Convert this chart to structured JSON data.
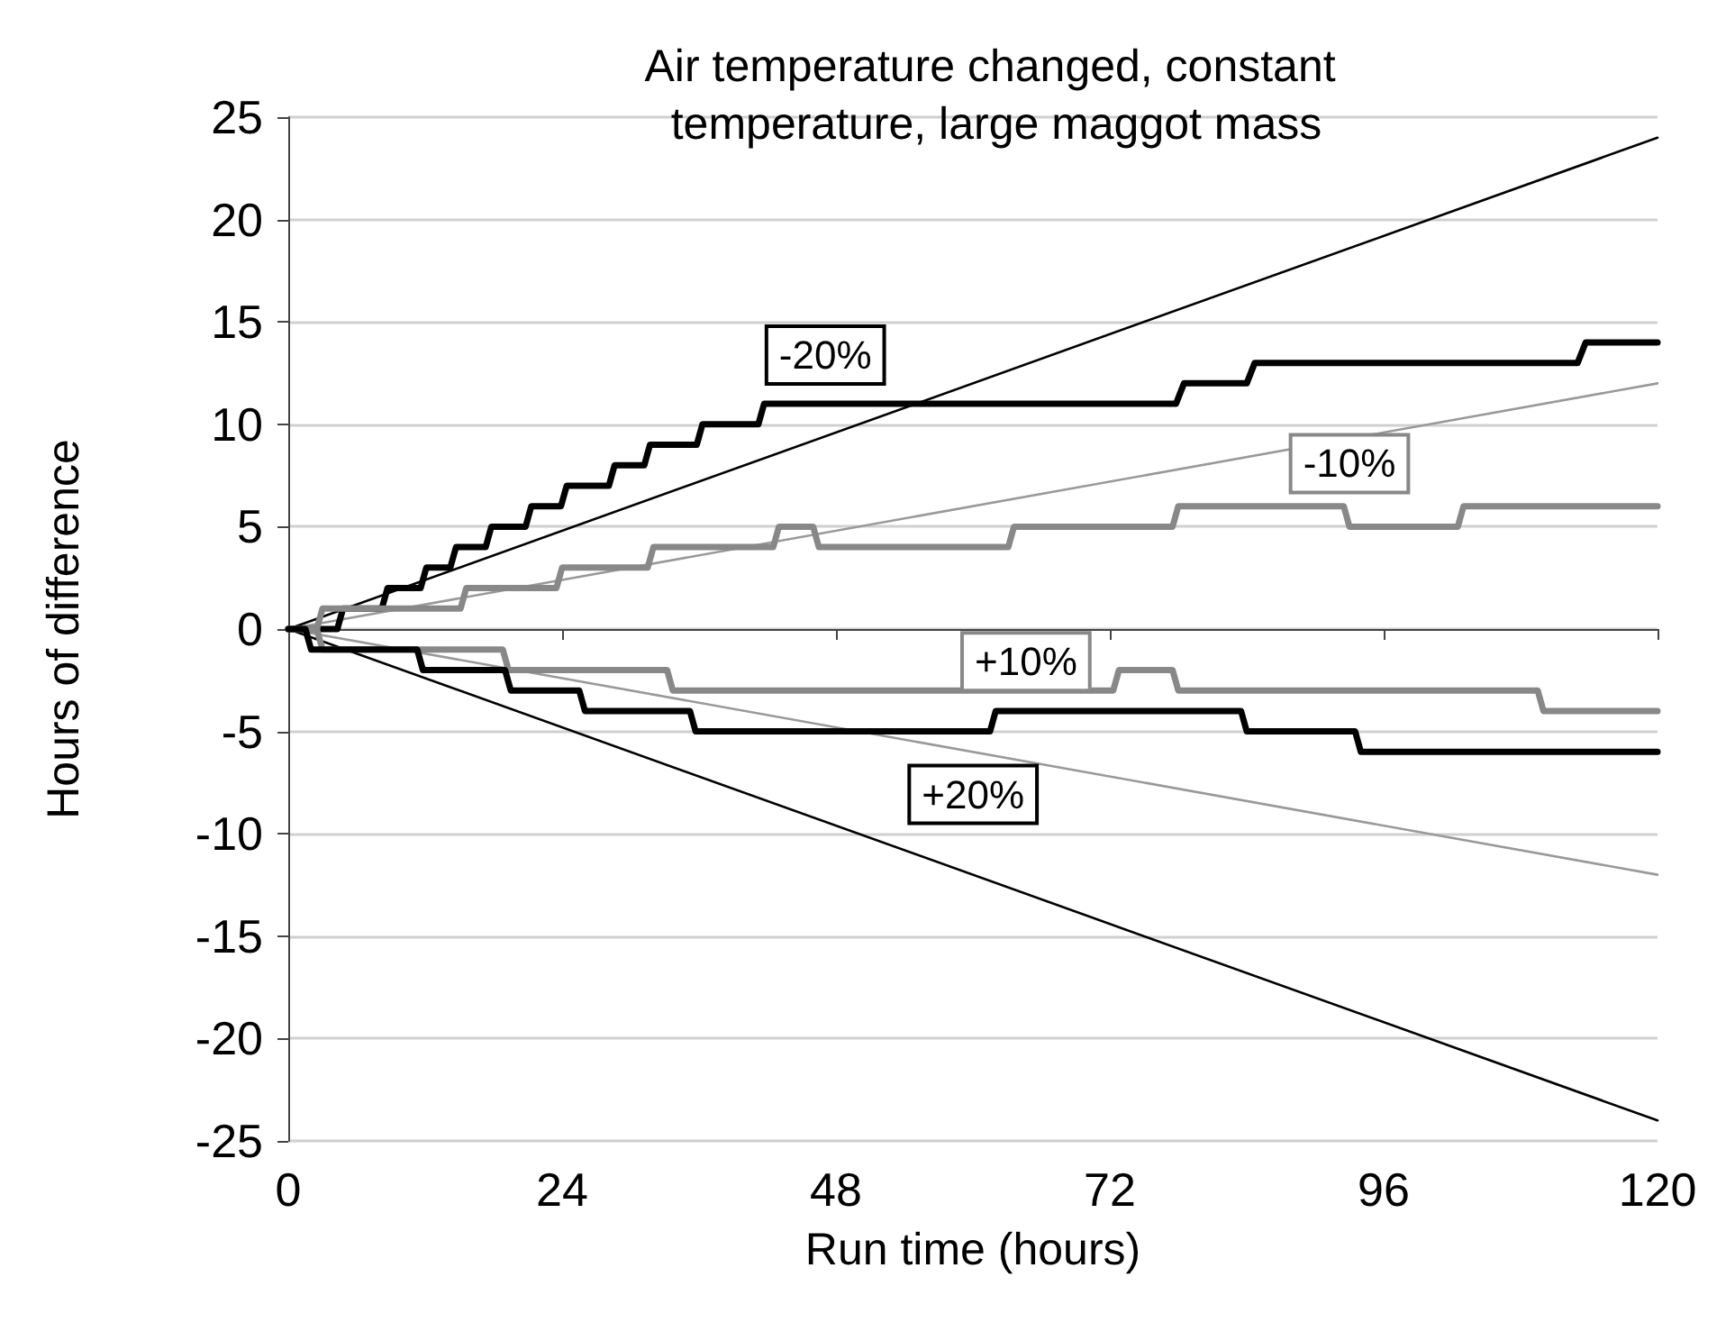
{
  "chart_data": {
    "type": "line",
    "title": "Air temperature changed, constant temperature, large maggot mass",
    "xlabel": "Run time (hours)",
    "ylabel": "Hours of difference",
    "xlim": [
      0,
      120
    ],
    "xticks": [
      0,
      24,
      48,
      72,
      96,
      120
    ],
    "ylim": [
      -25,
      25
    ],
    "yticks": [
      -25,
      -20,
      -15,
      -10,
      -5,
      0,
      5,
      10,
      15,
      20,
      25
    ],
    "grid": "y",
    "legend": false,
    "series": [
      {
        "color": "#000000",
        "x": [
          0,
          120
        ],
        "values": [
          0,
          24
        ]
      },
      {
        "color": "#000000",
        "x": [
          0,
          120
        ],
        "values": [
          0,
          -24
        ]
      },
      {
        "color": "#999999",
        "x": [
          0,
          120
        ],
        "values": [
          0,
          12
        ]
      },
      {
        "color": "#999999",
        "x": [
          0,
          120
        ],
        "values": [
          0,
          -12
        ]
      },
      {
        "name": "-20%",
        "color": "#000000",
        "x": [
          0,
          4.3,
          4.8,
          8.2,
          8.7,
          11.6,
          12.1,
          14.2,
          14.7,
          17.3,
          17.8,
          20.8,
          21.3,
          23.9,
          24.4,
          28.1,
          28.6,
          31.2,
          31.7,
          35.8,
          36.3,
          41.2,
          41.7,
          77.8,
          78.5,
          84,
          84.7,
          113,
          113.7,
          120
        ],
        "values": [
          0,
          0,
          1,
          1,
          2,
          2,
          3,
          3,
          4,
          4,
          5,
          5,
          6,
          6,
          7,
          7,
          8,
          8,
          9,
          9,
          10,
          10,
          11,
          11,
          12,
          12,
          13,
          13,
          14,
          14
        ]
      },
      {
        "name": "-10%",
        "color": "#888888",
        "x": [
          0,
          2.5,
          3,
          15.1,
          15.6,
          23.5,
          24,
          31.5,
          32,
          42.5,
          43,
          46,
          46.5,
          63.1,
          63.6,
          77.5,
          78,
          92.5,
          93,
          102.5,
          103,
          120
        ],
        "values": [
          0,
          0,
          1,
          1,
          2,
          2,
          3,
          3,
          4,
          4,
          5,
          5,
          4,
          4,
          5,
          5,
          6,
          6,
          5,
          5,
          6,
          6
        ]
      },
      {
        "name": "+10%",
        "color": "#888888",
        "x": [
          0,
          2.5,
          3,
          18.8,
          19.3,
          33.2,
          33.7,
          72.3,
          72.8,
          77.5,
          78,
          109.5,
          110,
          120
        ],
        "values": [
          0,
          0,
          -1,
          -1,
          -2,
          -2,
          -3,
          -3,
          -2,
          -2,
          -3,
          -3,
          -4,
          -4
        ]
      },
      {
        "name": "+20%",
        "color": "#000000",
        "x": [
          0,
          1.5,
          2,
          11.3,
          11.8,
          19,
          19.5,
          25.5,
          26,
          35.2,
          35.7,
          61.5,
          62,
          83.5,
          84,
          93.5,
          94,
          120
        ],
        "values": [
          0,
          0,
          -1,
          -1,
          -2,
          -2,
          -3,
          -3,
          -4,
          -4,
          -5,
          -5,
          -4,
          -4,
          -5,
          -5,
          -6,
          -6
        ]
      }
    ]
  }
}
